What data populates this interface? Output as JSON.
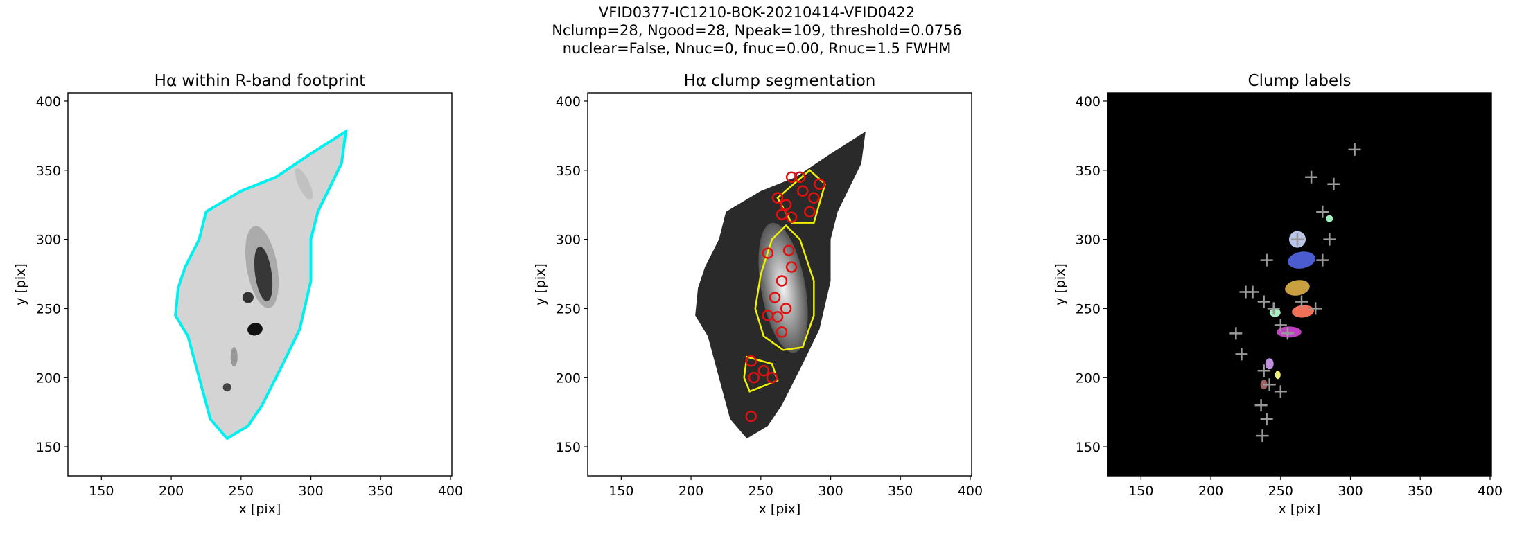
{
  "figure_title": [
    "VFID0377-IC1210-BOK-20210414-VFID0422",
    "Nclump=28, Ngood=28, Npeak=109, threshold=0.0756",
    "nuclear=False, Nnuc=0, fnuc=0.00, Rnuc=1.5 FWHM"
  ],
  "chart_data": [
    {
      "type": "image",
      "title": "Hα within R-band footprint",
      "xlabel": "x [pix]",
      "ylabel": "y [pix]",
      "xlim": [
        126,
        401
      ],
      "ylim": [
        129,
        406
      ],
      "xticks": [
        150,
        200,
        250,
        300,
        350,
        400
      ],
      "yticks": [
        150,
        200,
        250,
        300,
        350,
        400
      ],
      "background": "#ffffff"
    },
    {
      "type": "image",
      "title": "Hα clump segmentation",
      "xlabel": "x [pix]",
      "ylabel": "y [pix]",
      "xlim": [
        126,
        401
      ],
      "ylim": [
        129,
        406
      ],
      "xticks": [
        150,
        200,
        250,
        300,
        350,
        400
      ],
      "yticks": [
        150,
        200,
        250,
        300,
        350,
        400
      ],
      "background": "#ffffff",
      "markers": {
        "shape": "circle",
        "color": "#e01010",
        "x": [
          243,
          245,
          243,
          252,
          258,
          265,
          262,
          255,
          268,
          260,
          265,
          272,
          270,
          255,
          265,
          272,
          262,
          285,
          288,
          292,
          278,
          272,
          280,
          268
        ],
        "y": [
          172,
          200,
          212,
          205,
          200,
          233,
          244,
          245,
          250,
          258,
          270,
          280,
          292,
          290,
          318,
          316,
          330,
          320,
          330,
          340,
          345,
          345,
          335,
          325
        ]
      }
    },
    {
      "type": "image",
      "title": "Clump labels",
      "xlabel": "x [pix]",
      "ylabel": "y [pix]",
      "xlim": [
        126,
        401
      ],
      "ylim": [
        129,
        406
      ],
      "xticks": [
        150,
        200,
        250,
        300,
        350,
        400
      ],
      "yticks": [
        150,
        200,
        250,
        300,
        350,
        400
      ],
      "background": "#000000",
      "markers": {
        "shape": "plus",
        "color": "#9a9a9a",
        "x": [
          303,
          288,
          272,
          262,
          285,
          280,
          240,
          230,
          225,
          238,
          218,
          222,
          238,
          242,
          250,
          236,
          240,
          237,
          265,
          275,
          255,
          280,
          250,
          245
        ],
        "y": [
          365,
          340,
          345,
          300,
          300,
          285,
          285,
          262,
          262,
          255,
          232,
          217,
          205,
          195,
          190,
          180,
          170,
          158,
          255,
          250,
          232,
          320,
          238,
          250
        ]
      }
    }
  ]
}
